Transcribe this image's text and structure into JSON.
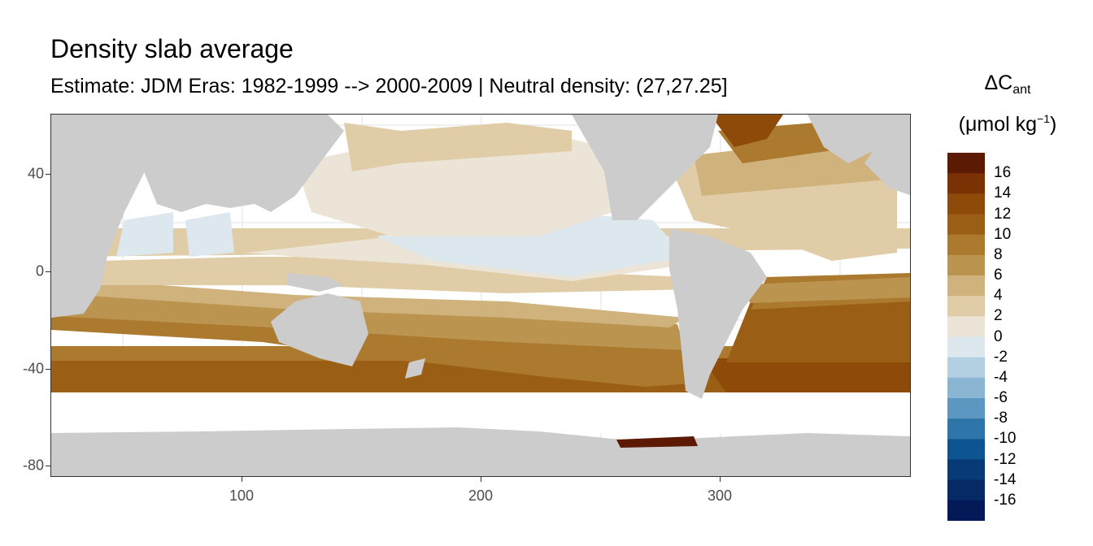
{
  "title": "Density slab average",
  "subtitle": "Estimate: JDM Eras: 1982-1999 --> 2000-2009 | Neutral density: (27,27.25]",
  "legend": {
    "title_main": "ΔC",
    "title_sub": "ant",
    "title_unit_open": "(μmol kg",
    "title_unit_sup": "−1",
    "title_unit_close": ")",
    "labels": [
      "16",
      "14",
      "12",
      "10",
      "8",
      "6",
      "4",
      "2",
      "0",
      "-2",
      "-4",
      "-6",
      "-8",
      "-10",
      "-12",
      "-14",
      "-16"
    ],
    "colors": [
      "#5c1a04",
      "#7a3204",
      "#8d4a09",
      "#9b5e15",
      "#ab7a2e",
      "#bb9450",
      "#cfb27c",
      "#e0cda8",
      "#ece4d6",
      "#dde7ee",
      "#b3cfe2",
      "#8ab5d3",
      "#5c97c1",
      "#2e76aa",
      "#0d5590",
      "#083a78",
      "#062a66",
      "#041a58"
    ]
  },
  "map": {
    "land_color": "#cccccc",
    "no_data_color": "#ffffff",
    "grid_color": "#ebebeb",
    "x_ticks": [
      "100",
      "200",
      "300"
    ],
    "y_ticks": [
      "40",
      "0",
      "-40",
      "-80"
    ]
  }
}
